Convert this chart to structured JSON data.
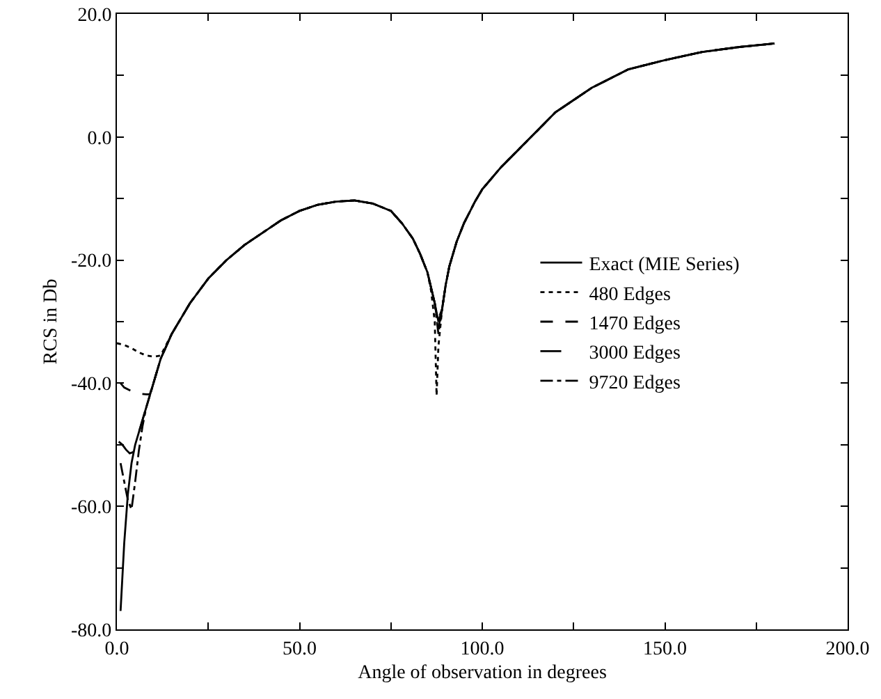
{
  "chart_data": {
    "type": "line",
    "xlabel": "Angle of observation in degrees",
    "ylabel": "RCS in Db",
    "xlim": [
      0,
      200
    ],
    "ylim": [
      -80,
      20
    ],
    "xticks": [
      {
        "value": 0,
        "label": "0.0"
      },
      {
        "value": 25,
        "label": null
      },
      {
        "value": 50,
        "label": "50.0"
      },
      {
        "value": 75,
        "label": null
      },
      {
        "value": 100,
        "label": "100.0"
      },
      {
        "value": 125,
        "label": null
      },
      {
        "value": 150,
        "label": "150.0"
      },
      {
        "value": 175,
        "label": null
      },
      {
        "value": 200,
        "label": "200.0"
      }
    ],
    "yticks": [
      {
        "value": -80,
        "label": "-80.0"
      },
      {
        "value": -70,
        "label": null
      },
      {
        "value": -60,
        "label": "-60.0"
      },
      {
        "value": -50,
        "label": null
      },
      {
        "value": -40,
        "label": "-40.0"
      },
      {
        "value": -30,
        "label": null
      },
      {
        "value": -20,
        "label": "-20.0"
      },
      {
        "value": -10,
        "label": null
      },
      {
        "value": 0,
        "label": "0.0"
      },
      {
        "value": 10,
        "label": null
      },
      {
        "value": 20,
        "label": "20.0"
      }
    ],
    "legend": "right",
    "marker": "none",
    "series": [
      {
        "name": "Exact (MIE Series)",
        "color": "#000000",
        "line_style": "solid",
        "x": [
          1,
          2,
          3,
          4,
          5,
          6,
          7,
          8,
          9,
          10,
          12,
          15,
          20,
          25,
          30,
          35,
          40,
          45,
          50,
          55,
          60,
          65,
          70,
          75,
          78,
          81,
          83,
          85,
          86,
          87,
          88,
          89,
          90,
          91,
          93,
          95,
          98,
          100,
          105,
          110,
          115,
          120,
          130,
          140,
          150,
          160,
          170,
          180
        ],
        "values": [
          -77,
          -66,
          -58,
          -53,
          -50,
          -48,
          -46,
          -44,
          -42,
          -40,
          -36,
          -32,
          -27,
          -23,
          -20,
          -17.5,
          -15.5,
          -13.5,
          -12,
          -11,
          -10.5,
          -10.3,
          -10.8,
          -12,
          -14,
          -16.5,
          -19,
          -22,
          -24.5,
          -27,
          -30,
          -28,
          -24,
          -21,
          -17,
          -14,
          -10.5,
          -8.5,
          -5,
          -2,
          1,
          4,
          8,
          11,
          12.5,
          13.8,
          14.6,
          15.2
        ]
      },
      {
        "name": "480 Edges",
        "color": "#000000",
        "line_style": "dotted",
        "x": [
          0,
          2,
          4,
          6,
          8,
          10,
          12,
          15,
          20,
          25,
          30,
          35,
          40,
          45,
          50,
          55,
          60,
          65,
          70,
          75,
          78,
          81,
          83,
          85,
          86,
          87,
          87.5,
          88,
          89,
          90,
          91,
          93,
          95,
          98,
          100,
          105,
          110,
          115,
          120,
          130,
          140,
          150,
          160,
          170,
          180
        ],
        "values": [
          -33.5,
          -33.8,
          -34.3,
          -35,
          -35.5,
          -35.7,
          -35.5,
          -32,
          -27,
          -23,
          -20,
          -17.5,
          -15.5,
          -13.5,
          -12,
          -11,
          -10.5,
          -10.3,
          -10.8,
          -12,
          -14,
          -16.5,
          -19,
          -22,
          -25,
          -30,
          -42,
          -34,
          -28,
          -24,
          -21,
          -17,
          -14,
          -10.5,
          -8.5,
          -5,
          -2,
          1,
          4,
          8,
          11,
          12.5,
          13.8,
          14.6,
          15.2
        ]
      },
      {
        "name": "1470 Edges",
        "color": "#000000",
        "line_style": "dashed",
        "x": [
          1,
          2,
          4,
          6,
          8,
          9,
          10,
          12,
          15,
          20,
          25,
          30,
          35,
          40,
          45,
          50,
          55,
          60,
          65,
          70,
          75,
          78,
          81,
          83,
          85,
          86,
          87,
          88,
          89,
          90,
          91,
          93,
          95,
          98,
          100,
          105,
          110,
          115,
          120,
          130,
          140,
          150,
          160,
          170,
          180
        ],
        "values": [
          -40,
          -40.7,
          -41.3,
          -41.7,
          -41.8,
          -41.8,
          -40,
          -36,
          -32,
          -27,
          -23,
          -20,
          -17.5,
          -15.5,
          -13.5,
          -12,
          -11,
          -10.5,
          -10.3,
          -10.8,
          -12,
          -14,
          -16.5,
          -19,
          -22,
          -24.5,
          -27,
          -31,
          -28,
          -24,
          -21,
          -17,
          -14,
          -10.5,
          -8.5,
          -5,
          -2,
          1,
          4,
          8,
          11,
          12.5,
          13.8,
          14.6,
          15.2
        ]
      },
      {
        "name": "3000 Edges",
        "color": "#000000",
        "line_style": "longdash",
        "x": [
          0.5,
          1.5,
          2.5,
          3.5,
          4.5,
          5,
          6,
          7,
          8,
          9,
          10,
          12,
          15,
          20,
          25,
          30,
          35,
          40,
          45,
          50,
          55,
          60,
          65,
          70,
          75,
          78,
          81,
          83,
          85,
          86,
          87,
          88,
          89,
          90,
          91,
          93,
          95,
          98,
          100,
          105,
          110,
          115,
          120,
          130,
          140,
          150,
          160,
          170,
          180
        ],
        "values": [
          -49.5,
          -50,
          -50.8,
          -51.4,
          -51.2,
          -50,
          -48,
          -46,
          -44,
          -42,
          -40,
          -36,
          -32,
          -27,
          -23,
          -20,
          -17.5,
          -15.5,
          -13.5,
          -12,
          -11,
          -10.5,
          -10.3,
          -10.8,
          -12,
          -14,
          -16.5,
          -19,
          -22,
          -24.5,
          -27,
          -29.5,
          -28,
          -24,
          -21,
          -17,
          -14,
          -10.5,
          -8.5,
          -5,
          -2,
          1,
          4,
          8,
          11,
          12.5,
          13.8,
          14.6,
          15.2
        ]
      },
      {
        "name": "9720 Edges",
        "color": "#000000",
        "line_style": "dashdot",
        "x": [
          1,
          2,
          3,
          4,
          5,
          6,
          7,
          8,
          9,
          10,
          12,
          15,
          20,
          25,
          30,
          35,
          40,
          45,
          50,
          55,
          60,
          65,
          70,
          75,
          78,
          81,
          83,
          85,
          86,
          87,
          88,
          89,
          90,
          91,
          93,
          95,
          98,
          100,
          105,
          110,
          115,
          120,
          130,
          140,
          150,
          160,
          170,
          180
        ],
        "values": [
          -53,
          -56,
          -59,
          -60.5,
          -56,
          -51,
          -47,
          -44,
          -42,
          -40,
          -36,
          -32,
          -27,
          -23,
          -20,
          -17.5,
          -15.5,
          -13.5,
          -12,
          -11,
          -10.5,
          -10.3,
          -10.8,
          -12,
          -14,
          -16.5,
          -19,
          -22,
          -24.5,
          -27,
          -32,
          -28,
          -24,
          -21,
          -17,
          -14,
          -10.5,
          -8.5,
          -5,
          -2,
          1,
          4,
          8,
          11,
          12.5,
          13.8,
          14.6,
          15.2
        ]
      }
    ]
  }
}
